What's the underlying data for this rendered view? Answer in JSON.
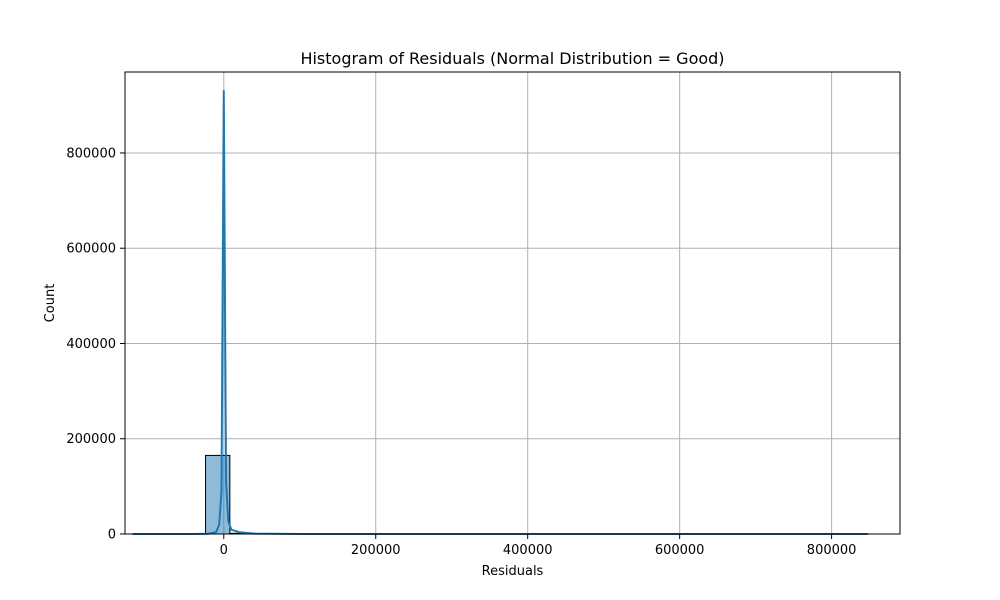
{
  "chart_data": {
    "type": "bar",
    "title": "Histogram of Residuals (Normal Distribution = Good)",
    "xlabel": "Residuals",
    "ylabel": "Count",
    "xlim": [
      -130000,
      890000
    ],
    "ylim": [
      0,
      970000
    ],
    "grid": true,
    "x_ticks": [
      {
        "value": 0,
        "label": "0"
      },
      {
        "value": 200000,
        "label": "200000"
      },
      {
        "value": 400000,
        "label": "400000"
      },
      {
        "value": 600000,
        "label": "600000"
      },
      {
        "value": 800000,
        "label": "800000"
      }
    ],
    "y_ticks": [
      {
        "value": 0,
        "label": "0"
      },
      {
        "value": 200000,
        "label": "200000"
      },
      {
        "value": 400000,
        "label": "400000"
      },
      {
        "value": 600000,
        "label": "600000"
      },
      {
        "value": 800000,
        "label": "800000"
      }
    ],
    "bins": [
      {
        "x0": -120000,
        "x1": -88000,
        "count": 0
      },
      {
        "x0": -88000,
        "x1": -56000,
        "count": 0
      },
      {
        "x0": -56000,
        "x1": -24000,
        "count": 0
      },
      {
        "x0": -24000,
        "x1": 8000,
        "count": 165000
      },
      {
        "x0": 8000,
        "x1": 40000,
        "count": 1500
      },
      {
        "x0": 40000,
        "x1": 72000,
        "count": 0
      },
      {
        "x0": 72000,
        "x1": 840000,
        "count": 0
      }
    ],
    "kde_line": {
      "x": [
        -120000,
        -40000,
        -20000,
        -10000,
        -6000,
        -3000,
        -1500,
        0,
        1500,
        3000,
        6000,
        10000,
        20000,
        40000,
        100000,
        300000,
        500000,
        700000,
        848000
      ],
      "y": [
        0,
        0,
        500,
        4000,
        20000,
        90000,
        500000,
        930000,
        520000,
        110000,
        26000,
        9000,
        4000,
        800,
        0,
        0,
        0,
        0,
        0
      ]
    },
    "colors": {
      "bar_fill": "#1f77b4",
      "bar_fill_opacity": 0.5,
      "bar_edge": "#000000",
      "kde": "#1f77b4",
      "grid": "#b0b0b0"
    }
  }
}
